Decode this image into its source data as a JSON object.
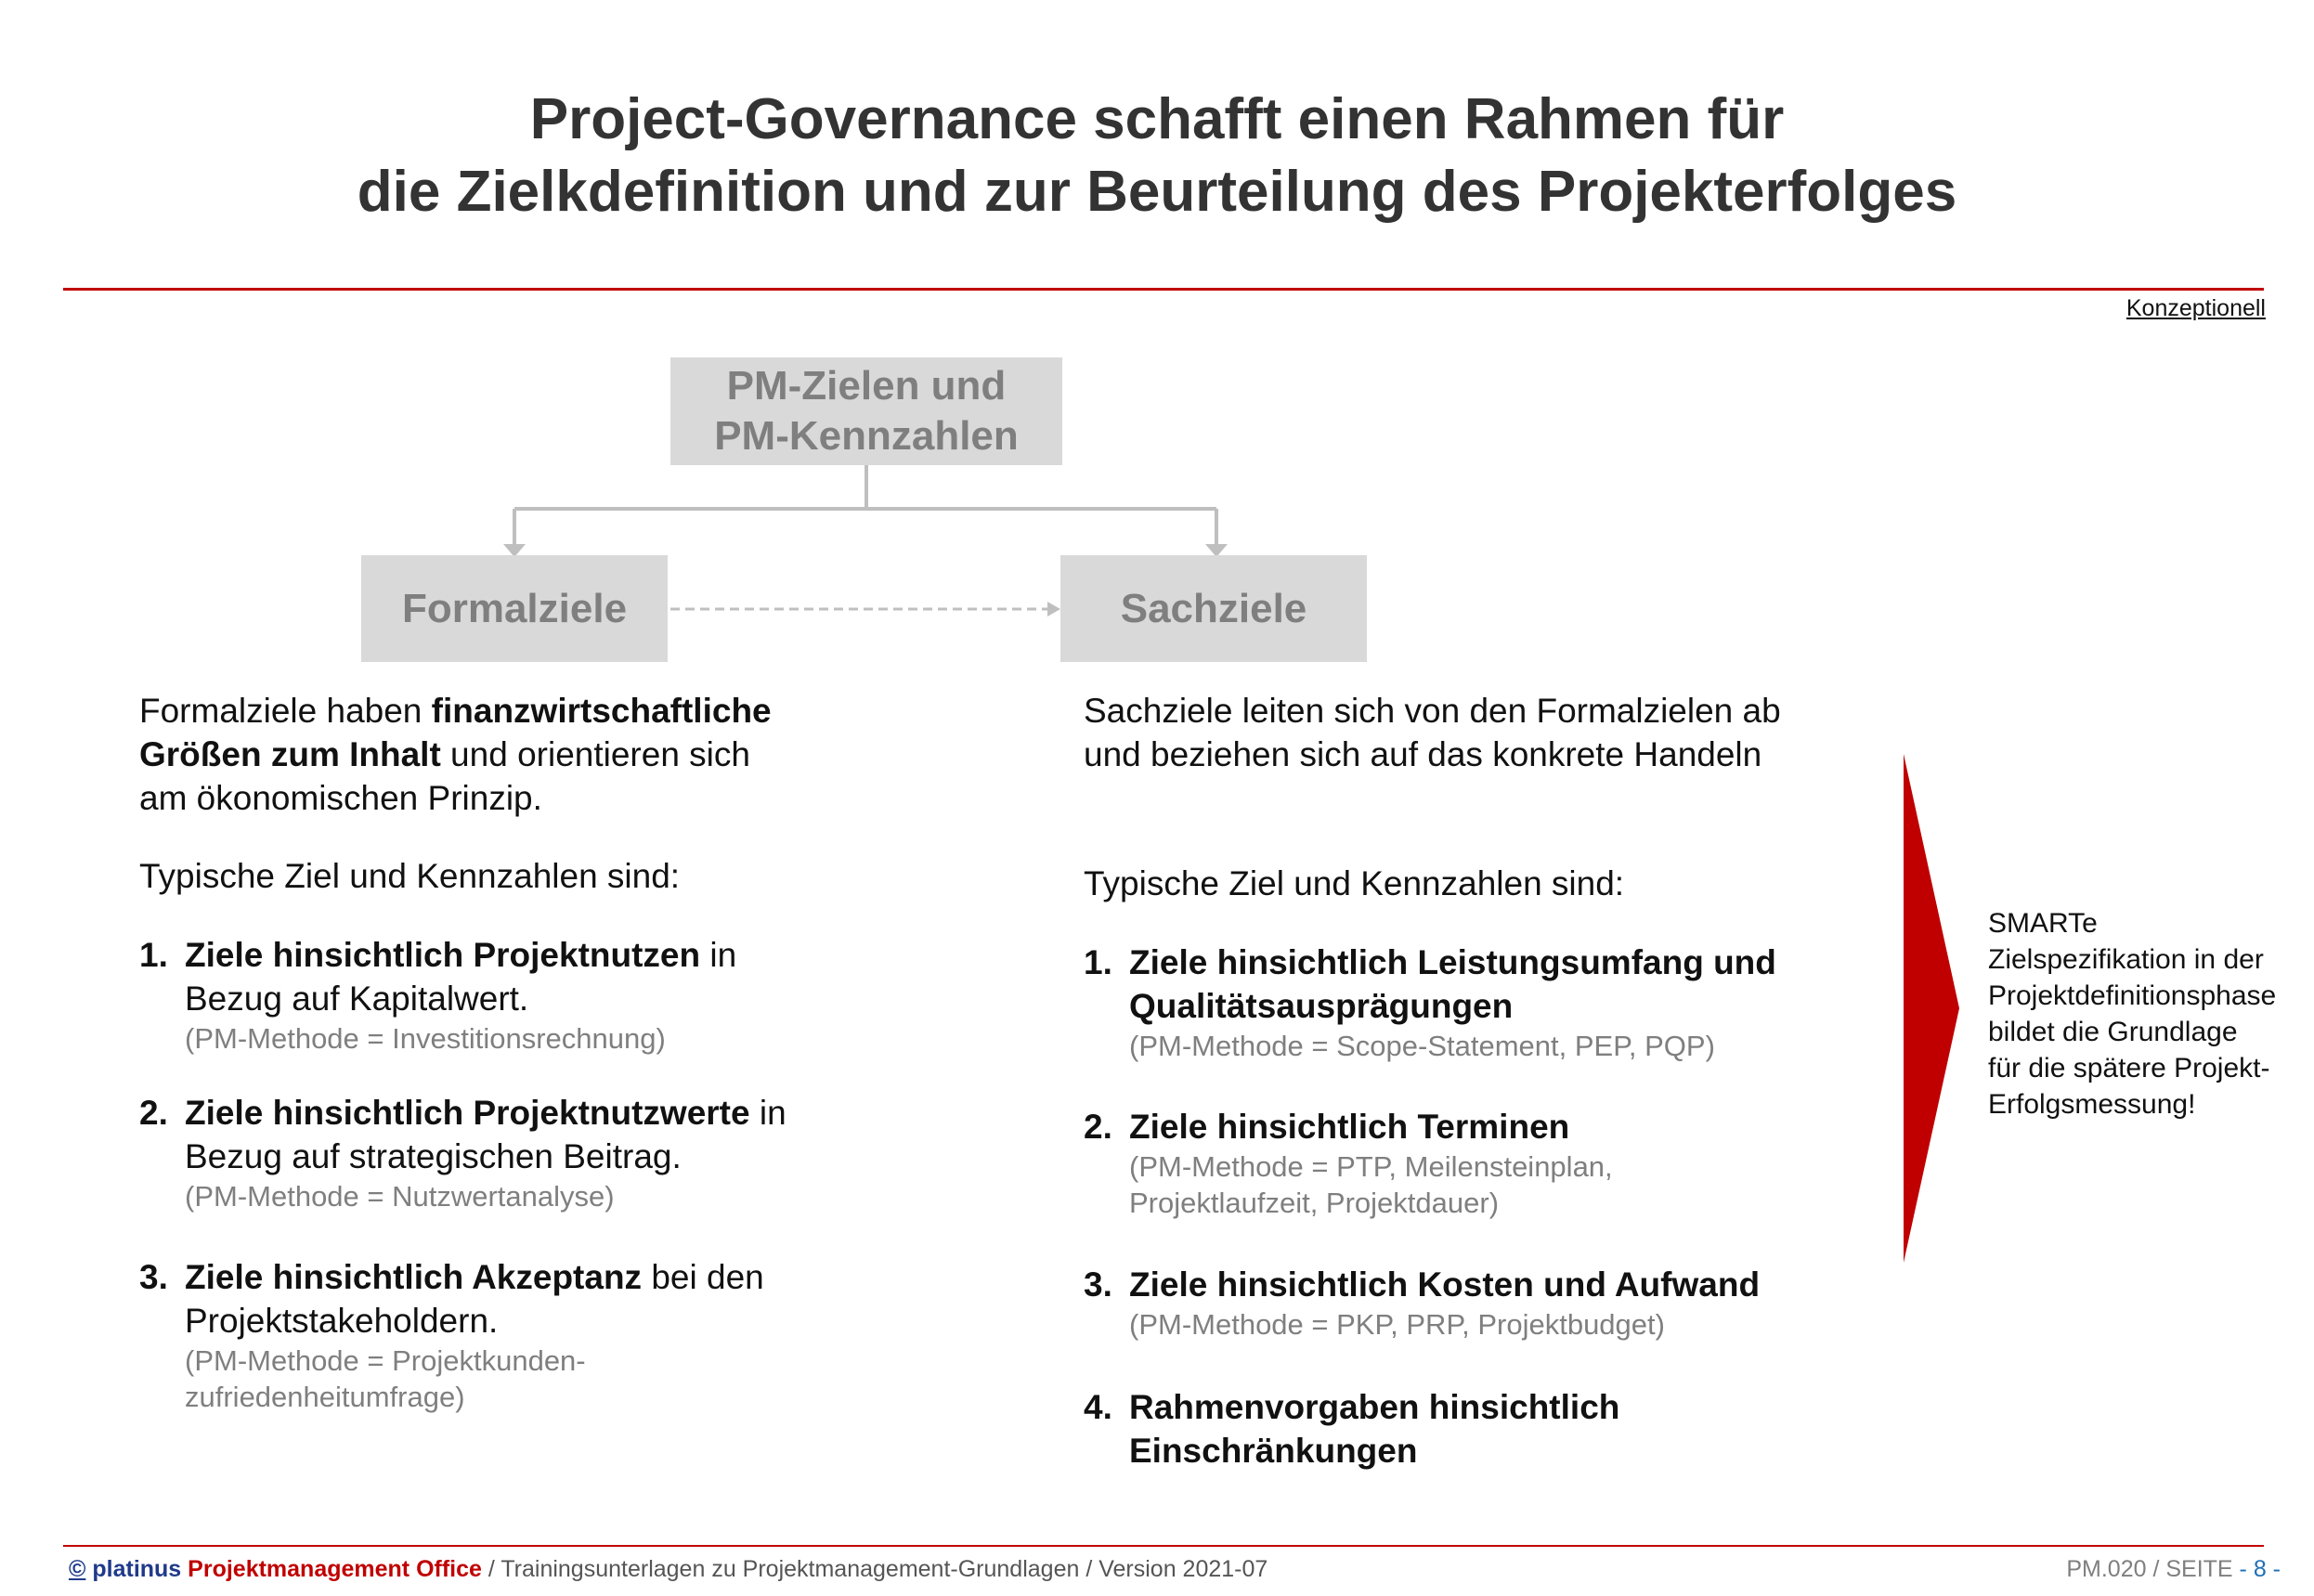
{
  "title": {
    "line1": "Project-Governance schafft einen Rahmen für",
    "line2": "die Zielkdefinition und zur Beurteilung des Projekterfolges"
  },
  "tag": "Konzeptionell",
  "diagram": {
    "top_box": {
      "line1": "PM-Zielen und",
      "line2": "PM-Kennzahlen"
    },
    "left_box": "Formalziele",
    "right_box": "Sachziele"
  },
  "left": {
    "intro_pre": "Formalziele haben ",
    "intro_bold1": "finanzwirtschaftliche",
    "intro_bold2": "Größen zum Inhalt",
    "intro_post": " und orientieren sich",
    "intro_line3": "am ökonomischen Prinzip.",
    "typical": "Typische Ziel und Kennzahlen sind:",
    "items": [
      {
        "num": "1.",
        "bold": "Ziele hinsichtlich Projektnutzen",
        "rest": " in",
        "line2": "Bezug auf Kapitalwert.",
        "method1": "(PM-Methode = Investitionsrechnung)",
        "method2": ""
      },
      {
        "num": "2.",
        "bold": "Ziele hinsichtlich Projektnutzwerte",
        "rest": " in",
        "line2": "Bezug auf strategischen Beitrag.",
        "method1": "(PM-Methode = Nutzwertanalyse)",
        "method2": ""
      },
      {
        "num": "3.",
        "bold": "Ziele hinsichtlich Akzeptanz",
        "rest": " bei den",
        "line2": "Projektstakeholdern.",
        "method1": "(PM-Methode = Projektkunden-",
        "method2": "zufriedenheitumfrage)"
      }
    ]
  },
  "right": {
    "intro_line1": "Sachziele leiten sich von den Formalzielen ab",
    "intro_line2": "und beziehen sich auf  das konkrete Handeln",
    "typical": "Typische Ziel und Kennzahlen sind:",
    "items": [
      {
        "num": "1.",
        "line1": "Ziele hinsichtlich Leistungsumfang und",
        "line2": "Qualitätsausprägungen",
        "method1": "(PM-Methode = Scope-Statement, PEP, PQP)",
        "method2": ""
      },
      {
        "num": "2.",
        "line1": "Ziele hinsichtlich Terminen",
        "line2": "",
        "method1": "(PM-Methode = PTP, Meilensteinplan,",
        "method2": "Projektlaufzeit, Projektdauer)"
      },
      {
        "num": "3.",
        "line1": "Ziele hinsichtlich Kosten und Aufwand",
        "line2": "",
        "method1": "(PM-Methode =  PKP, PRP, Projektbudget)",
        "method2": ""
      },
      {
        "num": "4.",
        "line1": "Rahmenvorgaben hinsichtlich",
        "line2": "Einschränkungen",
        "method1": "",
        "method2": ""
      }
    ]
  },
  "side_note": {
    "lines": [
      "SMARTe",
      "Zielspezifikation in der",
      "Projektdefinitionsphase",
      "bildet die Grundlage",
      "für die spätere Projekt-",
      "Erfolgsmessung!"
    ]
  },
  "footer": {
    "copyright": "©",
    "brand": "platinus",
    "pmo": "Projektmanagement Office",
    "rest": " / Trainingsunterlagen zu Projektmanagement-Grundlagen / Version 2021-07",
    "page_label": "PM.020 / SEITE",
    "page_number": "- 8 -"
  },
  "colors": {
    "accent": "#c00000",
    "box": "#d9d9d9",
    "box_text": "#7f7f7f",
    "method": "#7f7f7f"
  }
}
